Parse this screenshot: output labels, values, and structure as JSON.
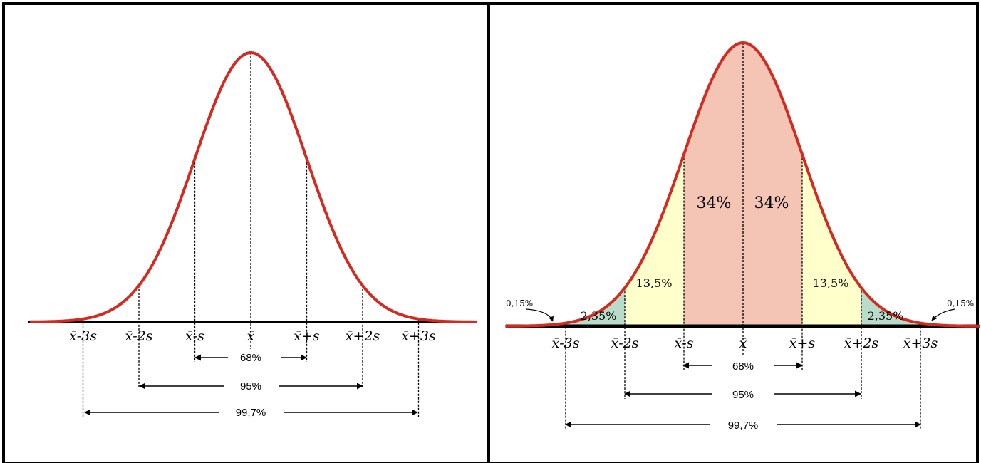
{
  "colors": {
    "curve": "#d42a1f",
    "frame": "#000000",
    "fill_center": "#f4c5b4",
    "fill_mid": "#ffffcc",
    "fill_far": "#b9dcca",
    "fill_tail": "#d8d8d8"
  },
  "tick_labels": [
    "x̄-3s",
    "x̄-2s",
    "x̄-s",
    "x̄",
    "x̄+s",
    "x̄+2s",
    "x̄+3s"
  ],
  "left_panel": {
    "range_labels": [
      "68%",
      "95%",
      "99,7%"
    ]
  },
  "right_panel": {
    "range_labels": [
      "68%",
      "95%",
      "99,7%"
    ],
    "region_labels": {
      "center_left": "34%",
      "center_right": "34%",
      "mid_left": "13,5%",
      "mid_right": "13,5%",
      "far_left": "2,35%",
      "far_right": "2,35%",
      "tail_left": "0,15%",
      "tail_right": "0,15%"
    }
  }
}
